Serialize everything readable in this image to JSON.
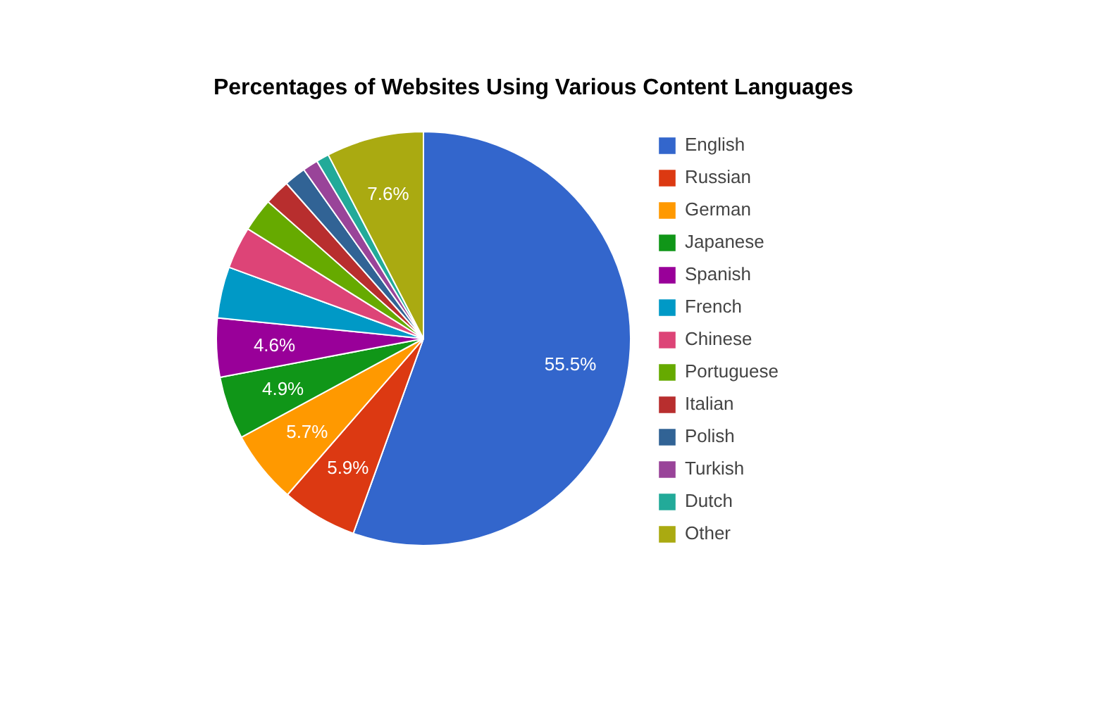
{
  "chart_data": {
    "type": "pie",
    "title": "Percentages of Websites Using Various Content Languages",
    "categories": [
      "English",
      "Russian",
      "German",
      "Japanese",
      "Spanish",
      "French",
      "Chinese",
      "Portuguese",
      "Italian",
      "Polish",
      "Turkish",
      "Dutch",
      "Other"
    ],
    "values": [
      55.5,
      5.9,
      5.7,
      4.9,
      4.6,
      4.0,
      3.3,
      2.6,
      2.0,
      1.7,
      1.2,
      1.0,
      7.6
    ],
    "value_labels": [
      "55.5%",
      "5.9%",
      "5.7%",
      "4.9%",
      "4.6%",
      null,
      null,
      null,
      null,
      null,
      null,
      null,
      "7.6%"
    ],
    "colors": [
      "#3366cc",
      "#dc3912",
      "#ff9900",
      "#109618",
      "#990099",
      "#0099c6",
      "#dd4477",
      "#66aa00",
      "#b82e2e",
      "#316395",
      "#994499",
      "#22aa99",
      "#aaaa11"
    ],
    "legend": "right"
  }
}
